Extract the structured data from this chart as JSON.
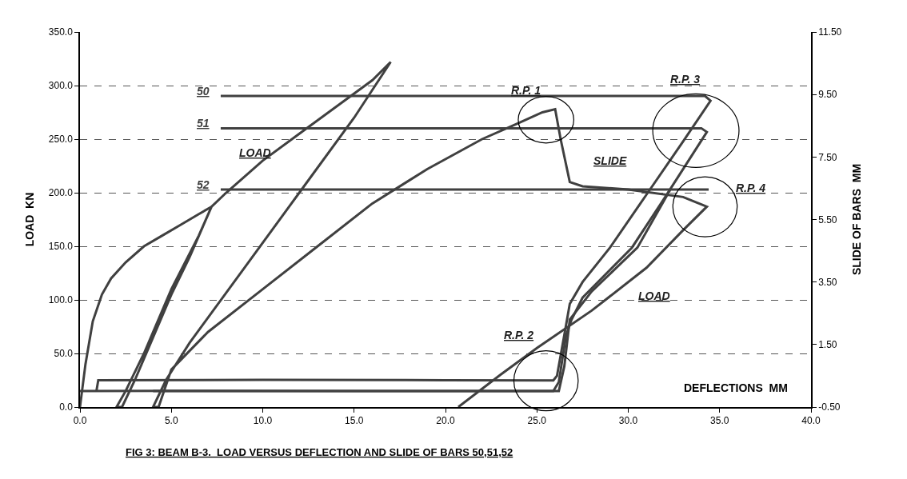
{
  "chart_data": {
    "type": "line",
    "title": "FIG 3: BEAM B-3.  LOAD VERSUS DEFLECTION AND SLIDE OF BARS 50,51,52",
    "xlabel": "DEFLECTIONS  MM",
    "ylabel": "LOAD  KN",
    "y2label": "SLIDE OF BARS  MM",
    "xlim": [
      0,
      40
    ],
    "ylim": [
      0,
      350
    ],
    "y2lim": [
      -0.5,
      11.5
    ],
    "xticks": [
      {
        "value": 0,
        "label": "0.0"
      },
      {
        "value": 5,
        "label": "5.0"
      },
      {
        "value": 10,
        "label": "10.0"
      },
      {
        "value": 15,
        "label": "15.0"
      },
      {
        "value": 20,
        "label": "20.0"
      },
      {
        "value": 25,
        "label": "25.0"
      },
      {
        "value": 30,
        "label": "30.0"
      },
      {
        "value": 35,
        "label": "35.0"
      },
      {
        "value": 40,
        "label": "40.0"
      }
    ],
    "yticks": [
      {
        "value": 0,
        "label": "0.0"
      },
      {
        "value": 50,
        "label": "50.0"
      },
      {
        "value": 100,
        "label": "100.0"
      },
      {
        "value": 150,
        "label": "150.0"
      },
      {
        "value": 200,
        "label": "200.0"
      },
      {
        "value": 250,
        "label": "250.0"
      },
      {
        "value": 300,
        "label": "300.0"
      },
      {
        "value": 350,
        "label": "350.0"
      }
    ],
    "y2ticks": [
      {
        "value": -0.5,
        "label": "-0.50"
      },
      {
        "value": 1.5,
        "label": "1.50"
      },
      {
        "value": 3.5,
        "label": "3.50"
      },
      {
        "value": 5.5,
        "label": "5.50"
      },
      {
        "value": 7.5,
        "label": "7.50"
      },
      {
        "value": 9.5,
        "label": "9.50"
      },
      {
        "value": 11.5,
        "label": "11.50"
      }
    ],
    "grid": "y",
    "legend": false,
    "marker": "none",
    "line_style": "solid",
    "series": [
      {
        "color": "#404040",
        "x": [
          0,
          0.3,
          0.7,
          1.2,
          1.7,
          2.5,
          3.5,
          4.5,
          5.5,
          6.5,
          7.2,
          6.5,
          5,
          3.5,
          2.5,
          2.0,
          2.3,
          3,
          4,
          5,
          6,
          7.2,
          8,
          10,
          12,
          14,
          16,
          17,
          15,
          12,
          9,
          6,
          4.7,
          4,
          4.3,
          5,
          7,
          10,
          13,
          16,
          19,
          22,
          24,
          25.3,
          26,
          26.3,
          26.8,
          27.5,
          30,
          33,
          34.3,
          33,
          31,
          28,
          25,
          23,
          20.7
        ],
        "values": [
          0,
          40,
          80,
          105,
          120,
          135,
          150,
          160,
          170,
          180,
          187,
          160,
          110,
          50,
          15,
          0,
          0,
          25,
          65,
          105,
          140,
          187,
          200,
          230,
          255,
          280,
          305,
          322,
          270,
          200,
          130,
          60,
          25,
          0,
          0,
          35,
          70,
          110,
          150,
          190,
          222,
          250,
          265,
          275,
          278,
          250,
          210,
          206,
          203,
          196,
          187,
          165,
          130,
          90,
          55,
          30,
          0
        ]
      },
      {
        "name": "50",
        "axis": "y2",
        "color": "#404040",
        "x": [
          0.9,
          1.0,
          10,
          20,
          25.9,
          26.1,
          26.5,
          26.8,
          27.5,
          29,
          31,
          33,
          34.5,
          34.2,
          25,
          7.7
        ],
        "values": [
          0.01,
          0.36,
          0.37,
          0.36,
          0.35,
          0.5,
          1.8,
          2.8,
          3.5,
          4.6,
          6.3,
          8.0,
          9.3,
          9.45,
          9.45,
          9.45
        ]
      },
      {
        "name": "51",
        "axis": "y2",
        "color": "#404040",
        "x": [
          0,
          5,
          15,
          25.9,
          26.2,
          26.6,
          26.9,
          27.5,
          30.2,
          32,
          34.3,
          34,
          25,
          7.7
        ],
        "values": [
          0.01,
          0.02,
          0.01,
          0.01,
          0.3,
          1.8,
          2.3,
          3.0,
          4.6,
          6.2,
          8.3,
          8.42,
          8.42,
          8.42
        ]
      },
      {
        "name": "52",
        "axis": "y2",
        "color": "#404040",
        "x": [
          4,
          15,
          26.2,
          26.5,
          26.8,
          28,
          30.5,
          32.3,
          34.4,
          7.7
        ],
        "values": [
          0.01,
          0.01,
          0.01,
          0.8,
          2.3,
          3.2,
          4.6,
          6.46,
          6.46,
          6.46
        ]
      }
    ],
    "annotations": [
      "LOAD",
      "LOAD",
      "SLIDE",
      "R.P. 1",
      "R.P. 2",
      "R.P. 3",
      "R.P. 4"
    ]
  }
}
